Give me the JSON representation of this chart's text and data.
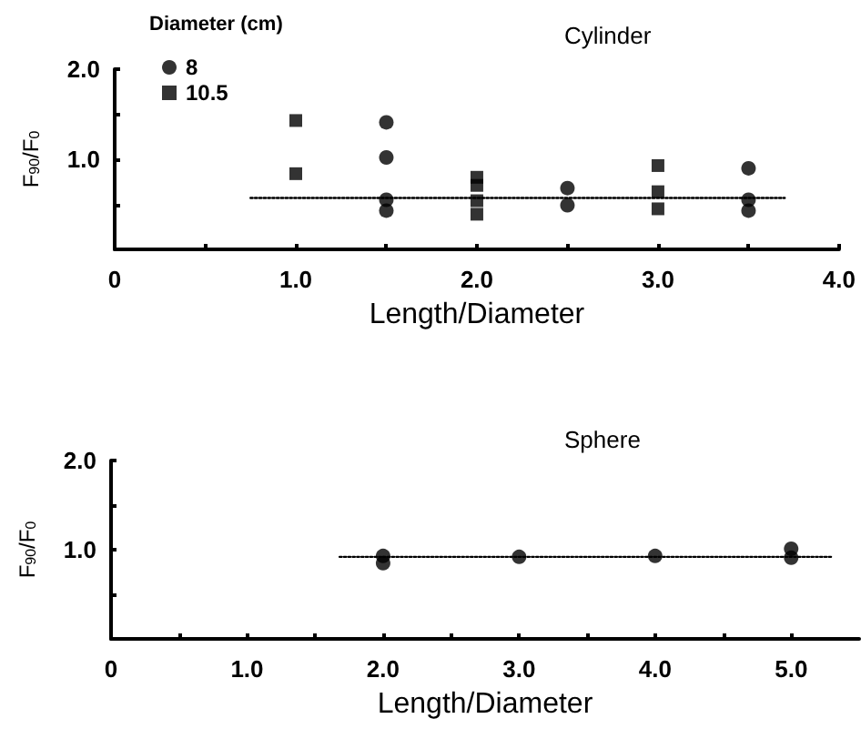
{
  "chart_data": [
    {
      "type": "scatter",
      "title": "Cylinder",
      "xlabel": "Length/Diameter",
      "ylabel": "F$_{90}$/F$_{0}$",
      "legend_title": "Diameter (cm)",
      "legend": "top left",
      "grid": false,
      "xlim": [
        0,
        4
      ],
      "ylim": [
        0,
        2
      ],
      "xticks": [
        {
          "value": 0,
          "label": "0"
        },
        {
          "value": 0.5,
          "label": null
        },
        {
          "value": 1,
          "label": "1.0"
        },
        {
          "value": 1.5,
          "label": null
        },
        {
          "value": 2,
          "label": "2.0"
        },
        {
          "value": 2.5,
          "label": null
        },
        {
          "value": 3,
          "label": "3.0"
        },
        {
          "value": 3.5,
          "label": null
        },
        {
          "value": 4,
          "label": "4.0"
        }
      ],
      "yticks": [
        {
          "value": 0,
          "label": null
        },
        {
          "value": 0.5,
          "label": null
        },
        {
          "value": 1,
          "label": "1.0"
        },
        {
          "value": 1.5,
          "label": null
        },
        {
          "value": 2,
          "label": "2.0"
        }
      ],
      "series": [
        {
          "name": "8",
          "color": "#000000",
          "marker": "circle",
          "x": [
            1.5,
            1.5,
            1.5,
            1.5,
            2.5,
            2.5,
            3.5,
            3.5,
            3.5
          ],
          "values": [
            1.41,
            1.02,
            0.55,
            0.43,
            0.68,
            0.49,
            0.9,
            0.55,
            0.43
          ]
        },
        {
          "name": "10.5",
          "color": "#000000",
          "marker": "square",
          "x": [
            1,
            1,
            2,
            2,
            2,
            2,
            3,
            3,
            3
          ],
          "values": [
            1.43,
            0.84,
            0.8,
            0.71,
            0.54,
            0.39,
            0.93,
            0.64,
            0.45
          ]
        },
        {
          "type": "line",
          "color": "#000000",
          "marker": "none",
          "line_style": "dotted",
          "x": [
            0.75,
            3.7
          ],
          "values": [
            0.57,
            0.57
          ]
        }
      ]
    },
    {
      "type": "scatter",
      "title": "Sphere",
      "xlabel": "Length/Diameter",
      "ylabel": "F$_{90}$/F$_{0}$",
      "legend": false,
      "grid": false,
      "xlim": [
        0,
        5.5
      ],
      "ylim": [
        0,
        2
      ],
      "xticks": [
        {
          "value": 0,
          "label": "0"
        },
        {
          "value": 0.5,
          "label": null
        },
        {
          "value": 1,
          "label": "1.0"
        },
        {
          "value": 1.5,
          "label": null
        },
        {
          "value": 2,
          "label": "2.0"
        },
        {
          "value": 2.5,
          "label": null
        },
        {
          "value": 3,
          "label": "3.0"
        },
        {
          "value": 3.5,
          "label": null
        },
        {
          "value": 4,
          "label": "4.0"
        },
        {
          "value": 4.5,
          "label": null
        },
        {
          "value": 5,
          "label": "5.0"
        }
      ],
      "yticks": [
        {
          "value": 0,
          "label": null
        },
        {
          "value": 0.5,
          "label": null
        },
        {
          "value": 1,
          "label": "1.0"
        },
        {
          "value": 1.5,
          "label": null
        },
        {
          "value": 2,
          "label": "2.0"
        }
      ],
      "series": [
        {
          "color": "#000000",
          "marker": "circle",
          "x": [
            2,
            2,
            3,
            4,
            5,
            5
          ],
          "values": [
            0.93,
            0.85,
            0.92,
            0.93,
            1.01,
            0.91
          ]
        },
        {
          "type": "line",
          "color": "#000000",
          "marker": "none",
          "line_style": "dotted",
          "x": [
            1.68,
            5.3
          ],
          "values": [
            0.92,
            0.92
          ]
        }
      ]
    }
  ]
}
